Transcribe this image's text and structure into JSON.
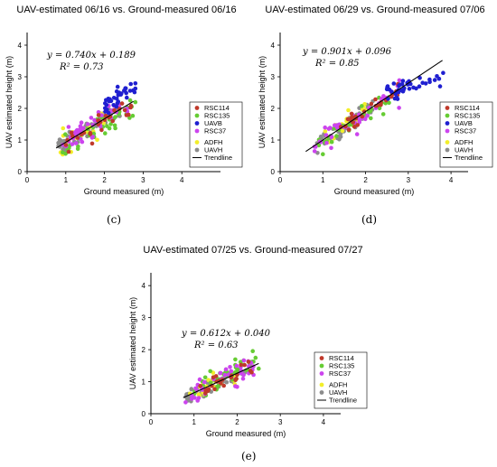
{
  "captions": [
    "(c)",
    "(d)",
    "(e)"
  ],
  "chart_data": [
    {
      "type": "scatter",
      "title": "UAV-estimated 06/16 vs. Ground-measured 06/16",
      "xlabel": "Ground measured (m)",
      "ylabel": "UAV estimated height (m)",
      "xlim": [
        0,
        5
      ],
      "ylim": [
        0,
        4.4
      ],
      "xticks": [
        0,
        1,
        2,
        3,
        4
      ],
      "yticks": [
        0,
        1,
        2,
        3,
        4
      ],
      "equation": "y = 0.740x + 0.189",
      "r2": "R² = 0.73",
      "legend": {
        "position": "lower-right",
        "items": [
          {
            "label": "RSC114",
            "color": "#c0392b",
            "kind": "dot"
          },
          {
            "label": "RSC135",
            "color": "#66cc33",
            "kind": "dot"
          },
          {
            "label": "UAVB",
            "color": "#1f1fd0",
            "kind": "dot"
          },
          {
            "label": "RSC37",
            "color": "#cc44ee",
            "kind": "dot"
          },
          {
            "label": "ADFH",
            "color": "#f2ee2a",
            "kind": "dot"
          },
          {
            "label": "UAVH",
            "color": "#8c8c8c",
            "kind": "dot"
          },
          {
            "label": "Trendline",
            "color": "#000000",
            "kind": "line"
          }
        ]
      },
      "trendline": {
        "slope": 0.74,
        "intercept": 0.189,
        "x_range": [
          0.75,
          2.75
        ]
      },
      "clusters": [
        {
          "name": "UAVH",
          "color": "#8c8c8c",
          "n": 80,
          "x_range": [
            0.8,
            2.4
          ],
          "slope": 0.74,
          "intercept": 0.19,
          "noise": 0.13
        },
        {
          "name": "ADFH",
          "color": "#f2ee2a",
          "n": 25,
          "x_range": [
            0.8,
            2.0
          ],
          "slope": 0.74,
          "intercept": 0.19,
          "noise": 0.15
        },
        {
          "name": "RSC135",
          "color": "#66cc33",
          "n": 40,
          "x_range": [
            0.9,
            2.8
          ],
          "slope": 0.7,
          "intercept": 0.1,
          "noise": 0.16
        },
        {
          "name": "RSC37",
          "color": "#cc44ee",
          "n": 50,
          "x_range": [
            0.9,
            2.6
          ],
          "slope": 0.72,
          "intercept": 0.25,
          "noise": 0.18
        },
        {
          "name": "RSC114",
          "color": "#c0392b",
          "n": 30,
          "x_range": [
            1.0,
            2.7
          ],
          "slope": 0.74,
          "intercept": 0.15,
          "noise": 0.15
        },
        {
          "name": "UAVB",
          "color": "#1f1fd0",
          "n": 35,
          "x_range": [
            2.0,
            2.8
          ],
          "slope": 0.9,
          "intercept": 0.25,
          "noise": 0.14
        }
      ]
    },
    {
      "type": "scatter",
      "title": "UAV-estimated 06/29 vs. Ground-measured 07/06",
      "xlabel": "Ground measured (m)",
      "ylabel": "UAV estimated height (m)",
      "xlim": [
        0,
        4.4
      ],
      "ylim": [
        0,
        4.4
      ],
      "xticks": [
        0,
        1,
        2,
        3,
        4
      ],
      "yticks": [
        0,
        1,
        2,
        3,
        4
      ],
      "equation": "y = 0.901x + 0.096",
      "r2": "R² = 0.85",
      "legend": {
        "position": "lower-right",
        "items": [
          {
            "label": "RSC114",
            "color": "#c0392b",
            "kind": "dot"
          },
          {
            "label": "RSC135",
            "color": "#66cc33",
            "kind": "dot"
          },
          {
            "label": "UAVB",
            "color": "#1f1fd0",
            "kind": "dot"
          },
          {
            "label": "RSC37",
            "color": "#cc44ee",
            "kind": "dot"
          },
          {
            "label": "ADFH",
            "color": "#f2ee2a",
            "kind": "dot"
          },
          {
            "label": "UAVH",
            "color": "#8c8c8c",
            "kind": "dot"
          },
          {
            "label": "Trendline",
            "color": "#000000",
            "kind": "line"
          }
        ]
      },
      "trendline": {
        "slope": 0.901,
        "intercept": 0.096,
        "x_range": [
          0.6,
          3.8
        ]
      },
      "clusters": [
        {
          "name": "UAVH",
          "color": "#8c8c8c",
          "n": 70,
          "x_range": [
            0.8,
            2.2
          ],
          "slope": 0.9,
          "intercept": 0.1,
          "noise": 0.15
        },
        {
          "name": "ADFH",
          "color": "#f2ee2a",
          "n": 25,
          "x_range": [
            1.0,
            2.0
          ],
          "slope": 0.9,
          "intercept": 0.15,
          "noise": 0.15
        },
        {
          "name": "RSC135",
          "color": "#66cc33",
          "n": 35,
          "x_range": [
            0.9,
            2.6
          ],
          "slope": 0.88,
          "intercept": 0.05,
          "noise": 0.18
        },
        {
          "name": "RSC37",
          "color": "#cc44ee",
          "n": 45,
          "x_range": [
            0.8,
            2.8
          ],
          "slope": 0.9,
          "intercept": 0.15,
          "noise": 0.18
        },
        {
          "name": "RSC114",
          "color": "#c0392b",
          "n": 30,
          "x_range": [
            1.4,
            2.8
          ],
          "slope": 0.9,
          "intercept": 0.1,
          "noise": 0.15
        },
        {
          "name": "UAVB",
          "color": "#1f1fd0",
          "n": 40,
          "x_range": [
            2.5,
            3.85
          ],
          "slope": 0.45,
          "intercept": 1.35,
          "noise": 0.13
        }
      ]
    },
    {
      "type": "scatter",
      "title": "UAV-estimated 07/25 vs. Ground-measured 07/27",
      "xlabel": "Ground measured (m)",
      "ylabel": "UAV estimated height (m)",
      "xlim": [
        0,
        4.4
      ],
      "ylim": [
        0,
        4.4
      ],
      "xticks": [
        0,
        1,
        2,
        3,
        4
      ],
      "yticks": [
        0,
        1,
        2,
        3,
        4
      ],
      "equation": "y = 0.612x + 0.040",
      "r2": "R² = 0.63",
      "legend": {
        "position": "lower-right",
        "items": [
          {
            "label": "RSC114",
            "color": "#c0392b",
            "kind": "dot"
          },
          {
            "label": "RSC135",
            "color": "#66cc33",
            "kind": "dot"
          },
          {
            "label": "RSC37",
            "color": "#cc44ee",
            "kind": "dot"
          },
          {
            "label": "ADFH",
            "color": "#f2ee2a",
            "kind": "dot"
          },
          {
            "label": "UAVH",
            "color": "#8c8c8c",
            "kind": "dot"
          },
          {
            "label": "Trendline",
            "color": "#000000",
            "kind": "line"
          }
        ]
      },
      "trendline": {
        "slope": 0.612,
        "intercept": 0.04,
        "x_range": [
          0.75,
          2.5
        ]
      },
      "clusters": [
        {
          "name": "UAVH",
          "color": "#8c8c8c",
          "n": 60,
          "x_range": [
            0.8,
            2.2
          ],
          "slope": 0.6,
          "intercept": 0.05,
          "noise": 0.12
        },
        {
          "name": "ADFH",
          "color": "#f2ee2a",
          "n": 25,
          "x_range": [
            0.9,
            2.0
          ],
          "slope": 0.6,
          "intercept": 0.1,
          "noise": 0.15
        },
        {
          "name": "RSC135",
          "color": "#66cc33",
          "n": 45,
          "x_range": [
            1.0,
            2.5
          ],
          "slope": 0.62,
          "intercept": 0.1,
          "noise": 0.2
        },
        {
          "name": "RSC37",
          "color": "#cc44ee",
          "n": 45,
          "x_range": [
            0.8,
            2.4
          ],
          "slope": 0.6,
          "intercept": 0.05,
          "noise": 0.18
        },
        {
          "name": "RSC114",
          "color": "#c0392b",
          "n": 25,
          "x_range": [
            1.1,
            2.4
          ],
          "slope": 0.6,
          "intercept": 0.05,
          "noise": 0.15
        }
      ]
    }
  ]
}
